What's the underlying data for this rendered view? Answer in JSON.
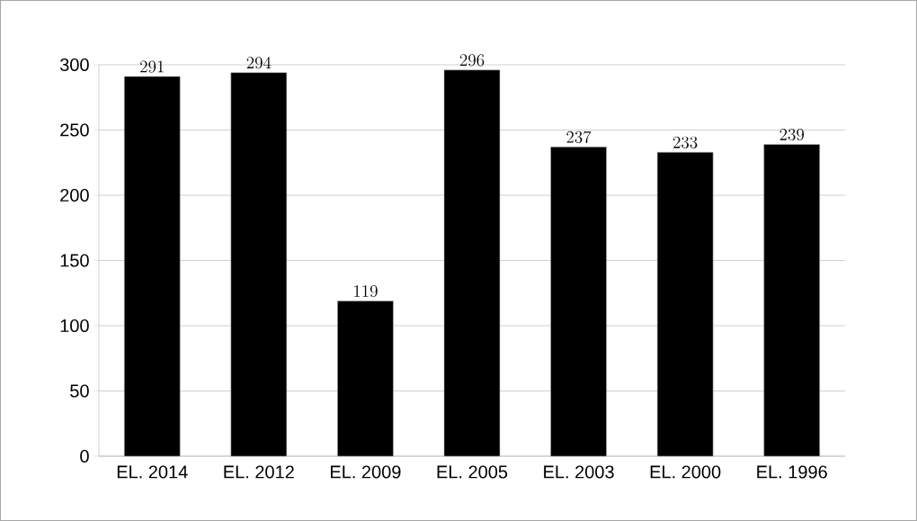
{
  "chart_data": {
    "type": "bar",
    "categories": [
      "EL. 2014",
      "EL. 2012",
      "EL. 2009",
      "EL. 2005",
      "EL. 2003",
      "EL. 2000",
      "EL. 1996"
    ],
    "values": [
      291,
      294,
      119,
      296,
      237,
      233,
      239
    ],
    "color": "#000000",
    "ylim": [
      0,
      300
    ],
    "yticks": [
      0,
      50,
      100,
      150,
      200,
      250,
      300
    ],
    "grid": "y",
    "data_labels": true
  }
}
